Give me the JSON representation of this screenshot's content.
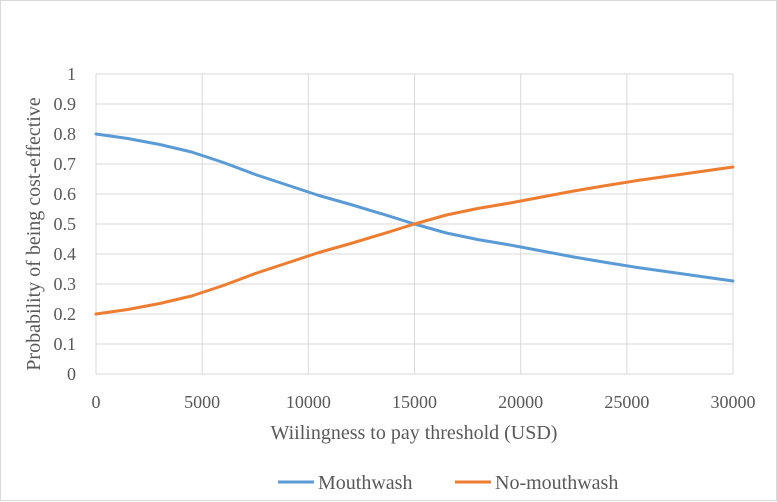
{
  "chart_data": {
    "type": "line",
    "title": "",
    "xlabel": "Wiilingness to pay threshold (USD)",
    "ylabel": "Probability of being cost-effective",
    "xlim": [
      0,
      30000
    ],
    "ylim": [
      0,
      1
    ],
    "x_ticks": [
      0,
      5000,
      10000,
      15000,
      20000,
      25000,
      30000
    ],
    "y_ticks": [
      0,
      0.1,
      0.2,
      0.3,
      0.4,
      0.5,
      0.6,
      0.7,
      0.8,
      0.9,
      1
    ],
    "x_tick_labels": [
      "0",
      "5000",
      "10000",
      "15000",
      "20000",
      "25000",
      "30000"
    ],
    "y_tick_labels": [
      "0",
      "0.1",
      "0.2",
      "0.3",
      "0.4",
      "0.5",
      "0.6",
      "0.7",
      "0.8",
      "0.9",
      "1"
    ],
    "grid": true,
    "legend_position": "bottom",
    "x": [
      0,
      1500,
      3000,
      4500,
      6000,
      7500,
      9000,
      10500,
      12000,
      13500,
      15000,
      16500,
      18000,
      19500,
      21000,
      22500,
      24000,
      25500,
      27000,
      28500,
      30000
    ],
    "series": [
      {
        "name": "Mouthwash",
        "color": "#5b9bd5",
        "values": [
          0.8,
          0.785,
          0.765,
          0.74,
          0.705,
          0.665,
          0.63,
          0.595,
          0.565,
          0.533,
          0.5,
          0.47,
          0.448,
          0.43,
          0.41,
          0.39,
          0.372,
          0.355,
          0.34,
          0.325,
          0.31
        ]
      },
      {
        "name": "No-mouthwash",
        "color": "#ed7d31",
        "values": [
          0.2,
          0.215,
          0.235,
          0.26,
          0.295,
          0.335,
          0.37,
          0.405,
          0.435,
          0.467,
          0.5,
          0.53,
          0.552,
          0.57,
          0.59,
          0.61,
          0.628,
          0.645,
          0.66,
          0.675,
          0.69
        ]
      }
    ]
  }
}
